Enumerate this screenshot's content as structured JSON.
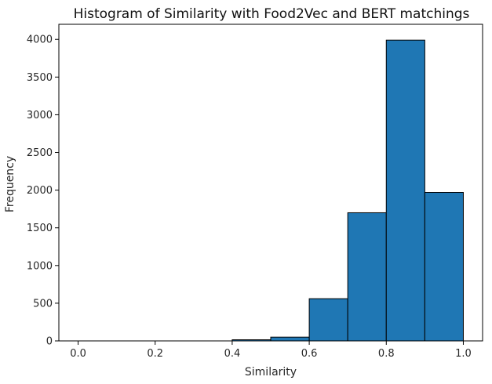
{
  "chart_data": {
    "type": "bar",
    "title": "Histogram of Similarity with Food2Vec and BERT matchings",
    "xlabel": "Similarity",
    "ylabel": "Frequency",
    "xlim": [
      -0.05,
      1.05
    ],
    "ylim": [
      0,
      4200
    ],
    "x_ticks": [
      0.0,
      0.2,
      0.4,
      0.6,
      0.8,
      1.0
    ],
    "x_tick_labels": [
      "0.0",
      "0.2",
      "0.4",
      "0.6",
      "0.8",
      "1.0"
    ],
    "y_ticks": [
      0,
      500,
      1000,
      1500,
      2000,
      2500,
      3000,
      3500,
      4000
    ],
    "y_tick_labels": [
      "0",
      "500",
      "1000",
      "1500",
      "2000",
      "2500",
      "3000",
      "3500",
      "4000"
    ],
    "bins": [
      {
        "start": 0.0,
        "end": 0.1,
        "value": 0
      },
      {
        "start": 0.1,
        "end": 0.2,
        "value": 0
      },
      {
        "start": 0.2,
        "end": 0.3,
        "value": 0
      },
      {
        "start": 0.3,
        "end": 0.4,
        "value": 0
      },
      {
        "start": 0.4,
        "end": 0.5,
        "value": 15
      },
      {
        "start": 0.5,
        "end": 0.6,
        "value": 50
      },
      {
        "start": 0.6,
        "end": 0.7,
        "value": 560
      },
      {
        "start": 0.7,
        "end": 0.8,
        "value": 1700
      },
      {
        "start": 0.8,
        "end": 0.9,
        "value": 3990
      },
      {
        "start": 0.9,
        "end": 1.0,
        "value": 1970
      }
    ],
    "bar_color": "#1f77b4",
    "edge_color": "#000000",
    "grid": false,
    "legend": "none"
  }
}
